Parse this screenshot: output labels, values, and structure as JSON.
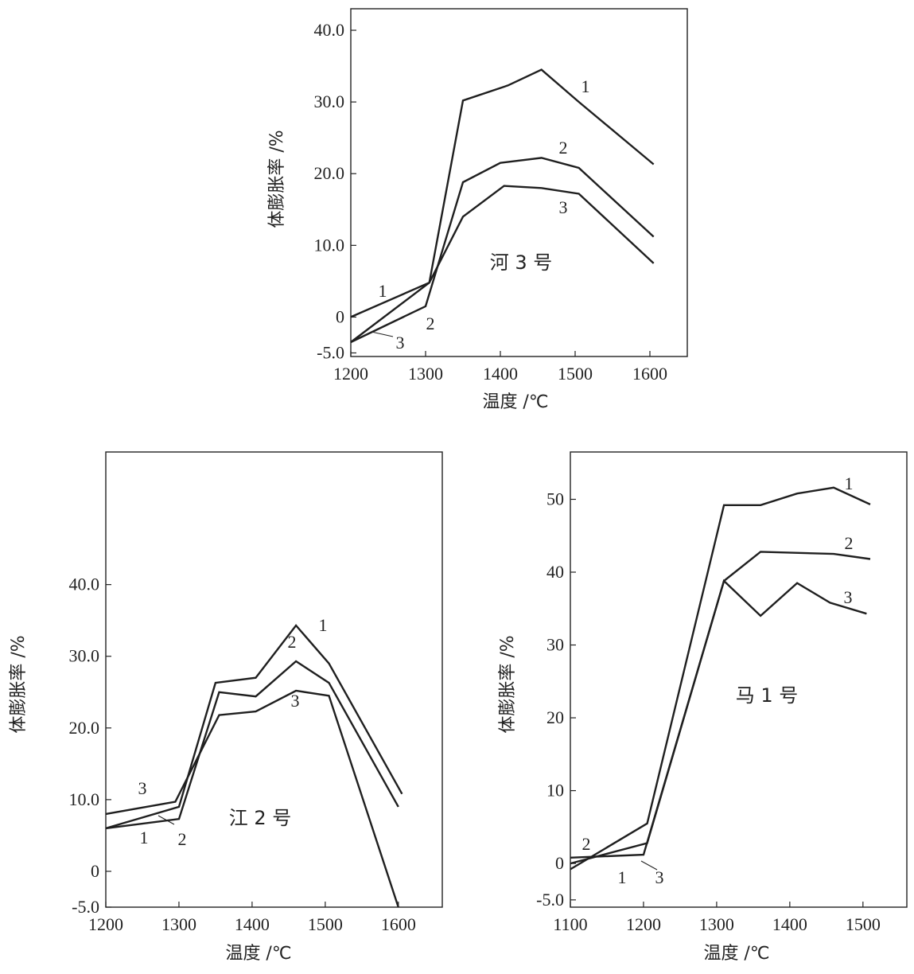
{
  "chart_data": [
    {
      "type": "line",
      "title": "河 3 号",
      "xlabel": "温度 /℃",
      "ylabel": "体膨胀率 /%",
      "xlim": [
        1200,
        1650
      ],
      "ylim": [
        -5.5,
        43.0
      ],
      "xticks": [
        1200,
        1300,
        1400,
        1500,
        1600
      ],
      "xtick_labels": [
        "1200",
        "1300",
        "1400",
        "1500",
        "1600"
      ],
      "yticks": [
        -5.0,
        0,
        10.0,
        20.0,
        30.0,
        40.0
      ],
      "ytick_labels": [
        "-5.0",
        "0",
        "10.0",
        "20.0",
        "30.0",
        "40.0"
      ],
      "grid": false,
      "series": [
        {
          "name": "1",
          "x": [
            1200,
            1305,
            1350,
            1410,
            1455,
            1505,
            1605
          ],
          "y": [
            0,
            4.8,
            30.2,
            32.3,
            34.5,
            30.0,
            21.3
          ]
        },
        {
          "name": "2",
          "x": [
            1200,
            1300,
            1350,
            1400,
            1455,
            1505,
            1605
          ],
          "y": [
            -3.5,
            1.5,
            18.8,
            21.5,
            22.2,
            20.8,
            11.2
          ]
        },
        {
          "name": "3",
          "x": [
            1200,
            1305,
            1350,
            1405,
            1455,
            1505,
            1605
          ],
          "y": [
            -3.5,
            4.8,
            14.0,
            18.3,
            18.0,
            17.2,
            7.5
          ]
        }
      ]
    },
    {
      "type": "line",
      "title": "江 2 号",
      "xlabel": "温度 /℃",
      "ylabel": "体膨胀率 /%",
      "xlim": [
        1200,
        1660
      ],
      "ylim": [
        -5.0,
        58.5
      ],
      "xticks": [
        1200,
        1300,
        1400,
        1500,
        1600
      ],
      "xtick_labels": [
        "1200",
        "1300",
        "1400",
        "1500",
        "1600"
      ],
      "yticks": [
        -5.0,
        0,
        10.0,
        20.0,
        30.0,
        40.0
      ],
      "ytick_labels": [
        "-5.0",
        "0",
        "10.0",
        "20.0",
        "30.0",
        "40.0"
      ],
      "grid": false,
      "series": [
        {
          "name": "1",
          "x": [
            1200,
            1300,
            1350,
            1405,
            1460,
            1505,
            1605
          ],
          "y": [
            6.0,
            9.0,
            26.3,
            27.0,
            34.3,
            29.0,
            10.8
          ]
        },
        {
          "name": "2",
          "x": [
            1200,
            1300,
            1355,
            1405,
            1460,
            1505,
            1600
          ],
          "y": [
            6.0,
            7.3,
            25.0,
            24.4,
            29.3,
            26.3,
            9.0
          ]
        },
        {
          "name": "3",
          "x": [
            1200,
            1295,
            1355,
            1405,
            1460,
            1505,
            1600
          ],
          "y": [
            8.0,
            9.7,
            21.8,
            22.3,
            25.2,
            24.5,
            -5.0
          ]
        }
      ]
    },
    {
      "type": "line",
      "title": "马 1 号",
      "xlabel": "温度 /℃",
      "ylabel": "体膨胀率 /%",
      "xlim": [
        1100,
        1560
      ],
      "ylim": [
        -6.0,
        56.5
      ],
      "xticks": [
        1100,
        1200,
        1300,
        1400,
        1500
      ],
      "xtick_labels": [
        "1100",
        "1200",
        "1300",
        "1400",
        "1500"
      ],
      "yticks": [
        -5.0,
        0,
        10,
        20,
        30,
        40,
        50
      ],
      "ytick_labels": [
        "-5.0",
        "0",
        "10",
        "20",
        "30",
        "40",
        "50"
      ],
      "grid": false,
      "series": [
        {
          "name": "1",
          "x": [
            1100,
            1205,
            1310,
            1360,
            1410,
            1460,
            1510
          ],
          "y": [
            -0.8,
            5.5,
            49.2,
            49.2,
            50.8,
            51.6,
            49.3
          ]
        },
        {
          "name": "2",
          "x": [
            1100,
            1200,
            1310,
            1360,
            1460,
            1510
          ],
          "y": [
            0.8,
            1.2,
            38.8,
            42.8,
            42.5,
            41.8
          ]
        },
        {
          "name": "3",
          "x": [
            1100,
            1205,
            1310,
            1360,
            1410,
            1455,
            1505
          ],
          "y": [
            0,
            2.8,
            38.8,
            34.0,
            38.5,
            35.8,
            34.3
          ]
        }
      ]
    }
  ]
}
